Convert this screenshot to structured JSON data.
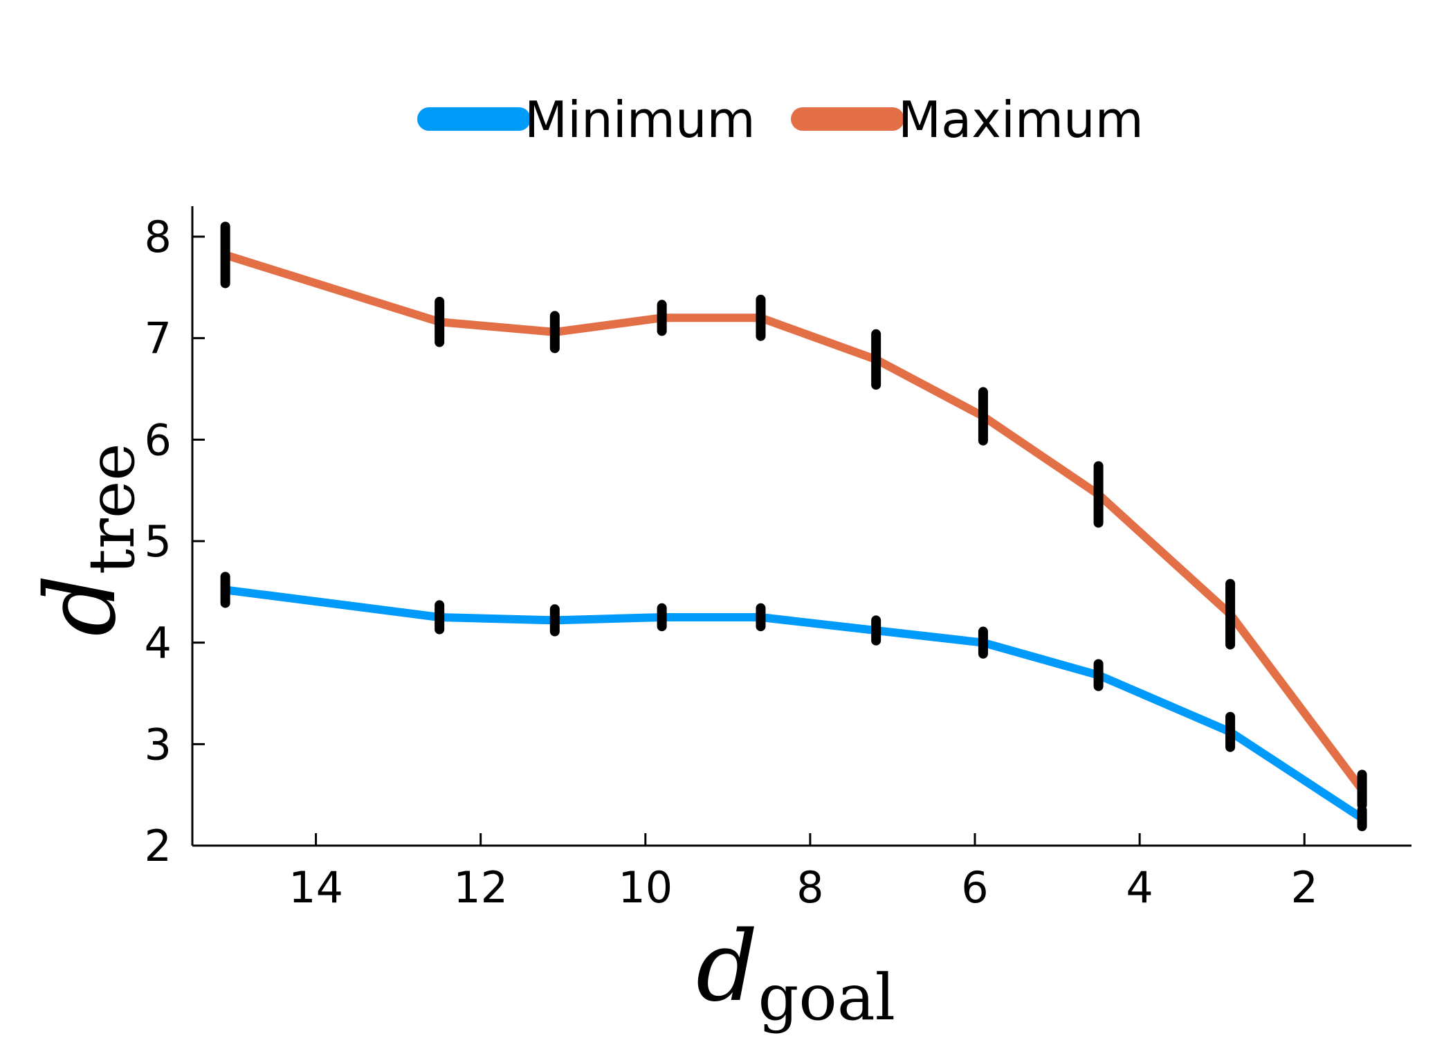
{
  "chart_data": {
    "type": "line",
    "xlabel": {
      "symbol": "d",
      "subscript": "goal"
    },
    "ylabel": {
      "symbol": "d",
      "subscript": "tree"
    },
    "x_reversed": true,
    "xlim": [
      15.5,
      0.7
    ],
    "ylim": [
      2,
      8.3
    ],
    "xticks": [
      14,
      12,
      10,
      8,
      6,
      4,
      2
    ],
    "yticks": [
      2,
      3,
      4,
      5,
      6,
      7,
      8
    ],
    "grid": false,
    "legend": {
      "position": "top",
      "orientation": "horizontal"
    },
    "x": [
      15.1,
      12.5,
      11.1,
      9.8,
      8.6,
      7.2,
      5.9,
      4.5,
      2.9,
      1.3
    ],
    "series": [
      {
        "name": "Minimum",
        "color": "#009AFA",
        "values": [
          4.52,
          4.25,
          4.22,
          4.25,
          4.25,
          4.12,
          4.0,
          3.68,
          3.12,
          2.27
        ],
        "error": [
          0.13,
          0.12,
          0.11,
          0.09,
          0.09,
          0.1,
          0.11,
          0.11,
          0.15,
          0.08
        ]
      },
      {
        "name": "Maximum",
        "color": "#E36F47",
        "values": [
          7.82,
          7.16,
          7.06,
          7.2,
          7.2,
          6.79,
          6.23,
          5.46,
          4.28,
          2.55
        ],
        "error": [
          0.28,
          0.2,
          0.16,
          0.13,
          0.18,
          0.25,
          0.24,
          0.28,
          0.3,
          0.15
        ]
      }
    ]
  }
}
